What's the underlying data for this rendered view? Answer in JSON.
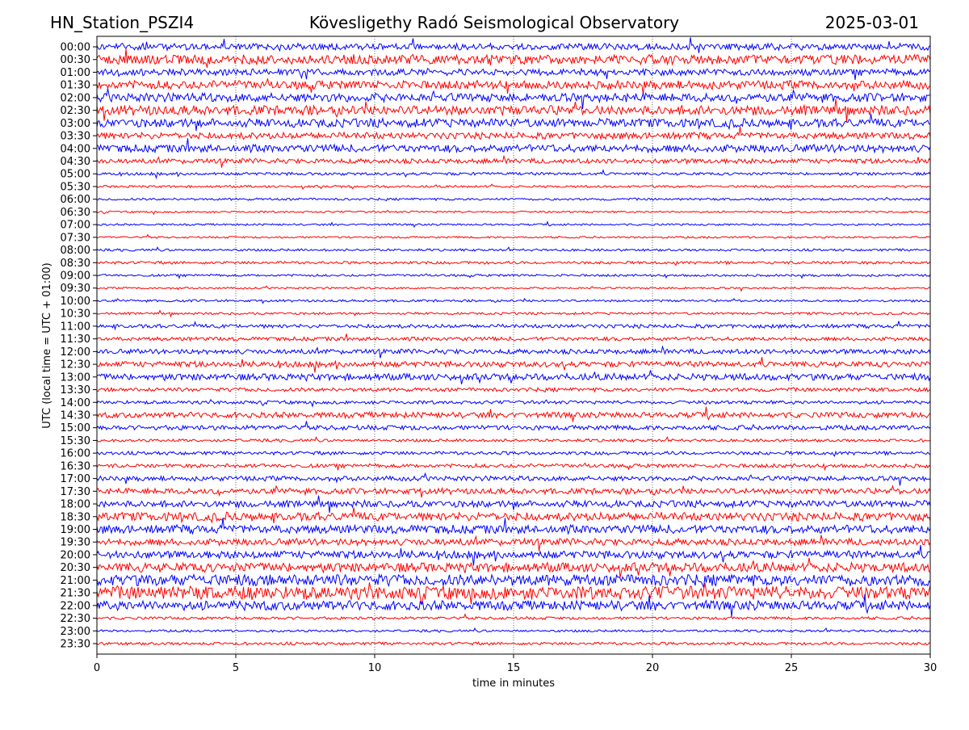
{
  "header": {
    "station": "HN_Station_PSZI4",
    "observatory": "Kövesligethy Radó Seismological Observatory",
    "date": "2025-03-01"
  },
  "chart_data": {
    "type": "line",
    "title": "Kövesligethy Radó Seismological Observatory",
    "xlabel": "time in minutes",
    "ylabel": "UTC (local time = UTC + 01:00)",
    "xlim": [
      0,
      30
    ],
    "xticks": [
      "0",
      "5",
      "10",
      "15",
      "20",
      "25",
      "30"
    ],
    "xtick_values": [
      0,
      5,
      10,
      15,
      20,
      25,
      30
    ],
    "grid": "vertical dotted at x ticks",
    "colors": [
      "#0000ff",
      "#ff0000"
    ],
    "rows": [
      "00:00",
      "00:30",
      "01:00",
      "01:30",
      "02:00",
      "02:30",
      "03:00",
      "03:30",
      "04:00",
      "04:30",
      "05:00",
      "05:30",
      "06:00",
      "06:30",
      "07:00",
      "07:30",
      "08:00",
      "08:30",
      "09:00",
      "09:30",
      "10:00",
      "10:30",
      "11:00",
      "11:30",
      "12:00",
      "12:30",
      "13:00",
      "13:30",
      "14:00",
      "14:30",
      "15:00",
      "15:30",
      "16:00",
      "16:30",
      "17:00",
      "17:30",
      "18:00",
      "18:30",
      "19:00",
      "19:30",
      "20:00",
      "20:30",
      "21:00",
      "21:30",
      "22:00",
      "22:30",
      "23:00",
      "23:30"
    ],
    "relative_noise_amplitude": [
      0.35,
      0.5,
      0.35,
      0.45,
      0.45,
      0.5,
      0.45,
      0.35,
      0.4,
      0.25,
      0.15,
      0.12,
      0.12,
      0.1,
      0.1,
      0.1,
      0.12,
      0.15,
      0.12,
      0.1,
      0.12,
      0.12,
      0.2,
      0.2,
      0.25,
      0.3,
      0.35,
      0.2,
      0.18,
      0.3,
      0.25,
      0.15,
      0.18,
      0.2,
      0.25,
      0.3,
      0.35,
      0.45,
      0.45,
      0.35,
      0.4,
      0.5,
      0.6,
      0.7,
      0.5,
      0.15,
      0.12,
      0.15
    ]
  }
}
